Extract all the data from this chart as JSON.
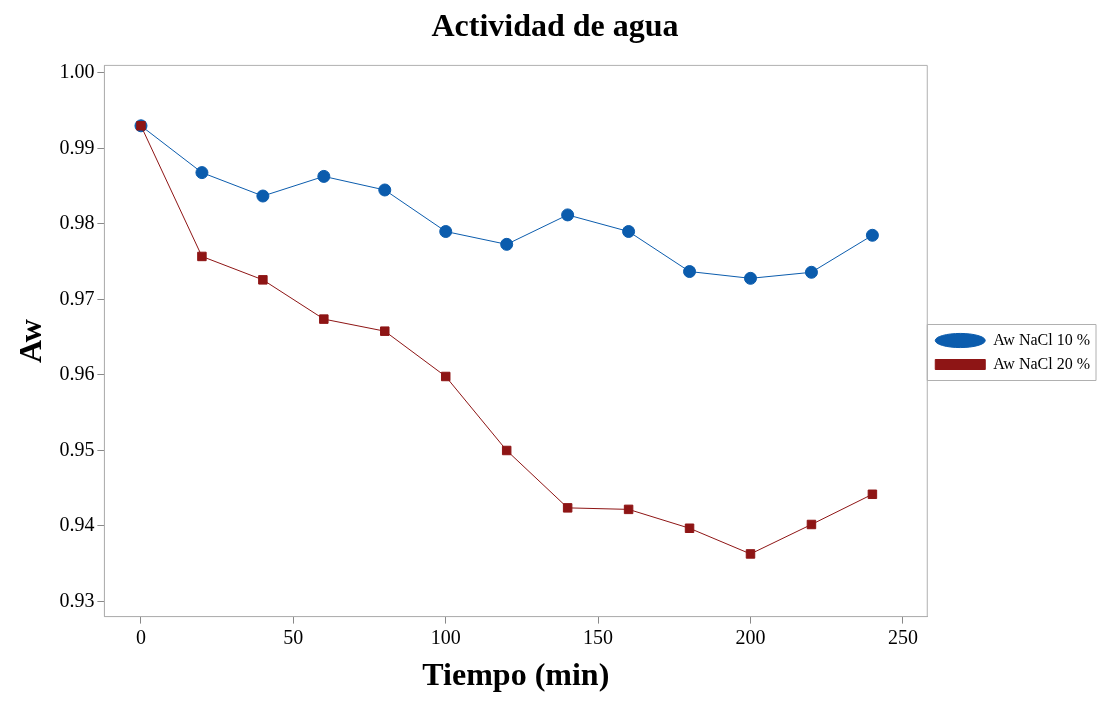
{
  "chart_data": {
    "type": "line",
    "title": "Actividad de agua",
    "xlabel": "Tiempo (min)",
    "ylabel": "Aw",
    "x": [
      0,
      20,
      40,
      60,
      80,
      100,
      120,
      140,
      160,
      180,
      200,
      220,
      240
    ],
    "series": [
      {
        "name": "Aw NaCl 10 %",
        "color": "#0b5cad",
        "marker": "circle",
        "values": [
          0.993,
          0.9868,
          0.9837,
          0.9863,
          0.9845,
          0.979,
          0.9773,
          0.9812,
          0.979,
          0.9737,
          0.9728,
          0.9736,
          0.9785
        ]
      },
      {
        "name": "Aw NaCl 20 %",
        "color": "#8e1515",
        "marker": "square",
        "values": [
          0.993,
          0.9757,
          0.9726,
          0.9674,
          0.9658,
          0.9598,
          0.95,
          0.9424,
          0.9422,
          0.9397,
          0.9363,
          0.9402,
          0.9442
        ]
      }
    ],
    "xlim": [
      -12,
      258
    ],
    "xticks": [
      0,
      50,
      100,
      150,
      200,
      250
    ],
    "ylim": [
      0.928,
      1.001
    ],
    "yticks": [
      0.93,
      0.94,
      0.95,
      0.96,
      0.97,
      0.98,
      0.99,
      {
        "value": 1,
        "label": "1.00"
      }
    ],
    "legend": "right",
    "line_style": "solid"
  }
}
